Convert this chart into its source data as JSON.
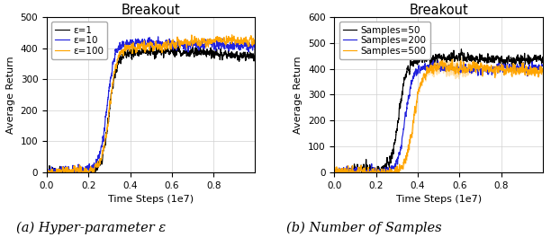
{
  "title": "Breakout",
  "xlabel": "Time Steps (1e7)",
  "ylabel": "Average Return",
  "xlim": [
    0.0,
    1.0
  ],
  "left_ylim": [
    0,
    500
  ],
  "right_ylim": [
    0,
    600
  ],
  "left_yticks": [
    0,
    100,
    200,
    300,
    400,
    500
  ],
  "right_yticks": [
    0,
    100,
    200,
    300,
    400,
    500,
    600
  ],
  "left_legend": [
    "ε=1",
    "ε=10",
    "ε=100"
  ],
  "right_legend": [
    "Samples=50",
    "Samples=200",
    "Samples=500"
  ],
  "left_colors": [
    "#000000",
    "#2222dd",
    "#ffa500"
  ],
  "right_colors": [
    "#000000",
    "#2222dd",
    "#ffa500"
  ],
  "caption_left": "(a) Hyper-parameter ε",
  "caption_right": "(b) Number of Samples",
  "n_steps": 2000,
  "seed": 42
}
